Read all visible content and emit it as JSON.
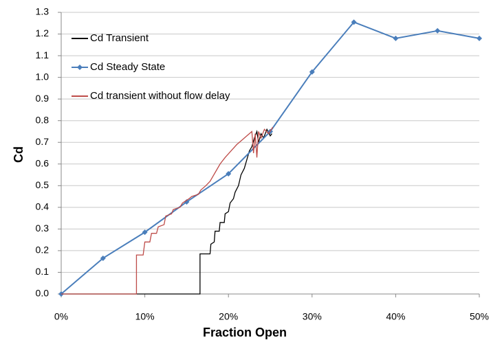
{
  "chart_data": {
    "type": "line",
    "xlabel": "Fraction Open",
    "ylabel": "Cd",
    "xlim": [
      0,
      50
    ],
    "ylim": [
      0,
      1.3
    ],
    "xticks": [
      {
        "value": 0,
        "label": "0%"
      },
      {
        "value": 10,
        "label": "10%"
      },
      {
        "value": 20,
        "label": "20%"
      },
      {
        "value": 30,
        "label": "30%"
      },
      {
        "value": 40,
        "label": "40%"
      },
      {
        "value": 50,
        "label": "50%"
      }
    ],
    "yticks": [
      {
        "value": 0,
        "label": "0.0"
      },
      {
        "value": 0.1,
        "label": "0.1"
      },
      {
        "value": 0.2,
        "label": "0.2"
      },
      {
        "value": 0.3,
        "label": "0.3"
      },
      {
        "value": 0.4,
        "label": "0.4"
      },
      {
        "value": 0.5,
        "label": "0.5"
      },
      {
        "value": 0.6,
        "label": "0.6"
      },
      {
        "value": 0.7,
        "label": "0.7"
      },
      {
        "value": 0.8,
        "label": "0.8"
      },
      {
        "value": 0.9,
        "label": "0.9"
      },
      {
        "value": 1.0,
        "label": "1.0"
      },
      {
        "value": 1.1,
        "label": "1.1"
      },
      {
        "value": 1.2,
        "label": "1.2"
      },
      {
        "value": 1.3,
        "label": "1.3"
      }
    ],
    "grid": true,
    "legend_position": "upper left",
    "series": [
      {
        "name": "Cd Transient",
        "color": "#000000",
        "marker": false,
        "x": [
          0,
          16.6,
          16.6,
          17.8,
          17.9,
          18.3,
          18.4,
          18.9,
          19.0,
          19.5,
          19.6,
          20.0,
          20.2,
          20.6,
          20.8,
          21.2,
          21.5,
          21.9,
          22.2,
          22.5,
          22.8,
          23.1,
          23.4,
          23.6,
          23.9,
          24.2,
          24.6,
          25.0,
          25.2
        ],
        "values": [
          0,
          0,
          0.185,
          0.185,
          0.23,
          0.24,
          0.29,
          0.29,
          0.33,
          0.33,
          0.37,
          0.38,
          0.42,
          0.44,
          0.47,
          0.5,
          0.55,
          0.58,
          0.62,
          0.66,
          0.68,
          0.72,
          0.75,
          0.7,
          0.74,
          0.72,
          0.76,
          0.73,
          0.74
        ]
      },
      {
        "name": "Cd Steady State",
        "color": "#4a7ebb",
        "marker": true,
        "x": [
          0,
          5,
          10,
          15,
          20,
          25,
          30,
          35,
          40,
          45,
          50
        ],
        "values": [
          0,
          0.165,
          0.285,
          0.425,
          0.555,
          0.75,
          1.025,
          1.255,
          1.18,
          1.215,
          1.18
        ]
      },
      {
        "name": "Cd transient without flow delay",
        "color": "#be4b48",
        "marker": false,
        "x": [
          0,
          9.0,
          9.0,
          9.8,
          10.0,
          10.6,
          10.8,
          11.4,
          11.6,
          12.3,
          12.5,
          13.2,
          13.4,
          14.2,
          14.5,
          15.3,
          15.6,
          16.4,
          16.7,
          17.3,
          17.8,
          18.4,
          19.0,
          19.6,
          20.3,
          21.0,
          21.6,
          22.2,
          22.8,
          23.0,
          23.2,
          23.4,
          23.6,
          23.9,
          24.3,
          24.8,
          25.3
        ],
        "values": [
          0,
          0,
          0.18,
          0.18,
          0.24,
          0.24,
          0.28,
          0.28,
          0.31,
          0.32,
          0.36,
          0.37,
          0.39,
          0.4,
          0.42,
          0.44,
          0.45,
          0.46,
          0.48,
          0.5,
          0.52,
          0.56,
          0.6,
          0.63,
          0.66,
          0.69,
          0.71,
          0.73,
          0.75,
          0.65,
          0.74,
          0.63,
          0.75,
          0.72,
          0.76,
          0.74,
          0.77
        ]
      }
    ]
  }
}
